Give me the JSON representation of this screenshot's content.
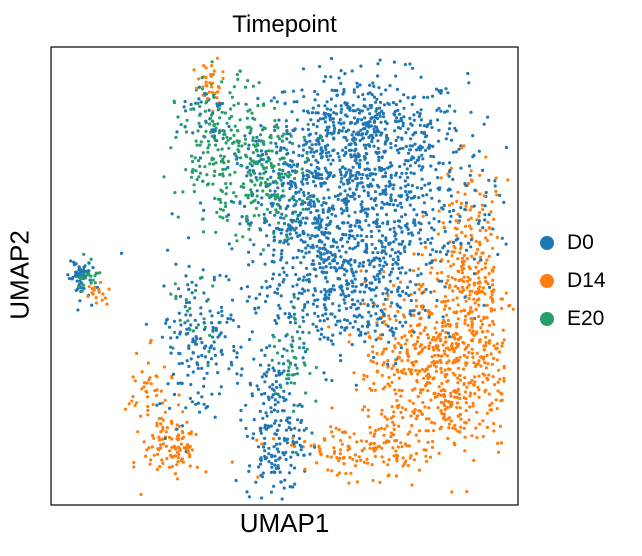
{
  "chart_data": {
    "type": "scatter",
    "title": "Timepoint",
    "xlabel": "UMAP1",
    "ylabel": "UMAP2",
    "xticks": false,
    "yticks": false,
    "grid": false,
    "legend_position": "right",
    "xlim": [
      0,
      100
    ],
    "ylim": [
      0,
      100
    ],
    "series": [
      {
        "name": "D0",
        "color": "#1f77b4",
        "clusters": [
          {
            "center": [
              67,
              80
            ],
            "spread": [
              11,
              7
            ],
            "count": 620
          },
          {
            "center": [
              56,
              62
            ],
            "spread": [
              8,
              10
            ],
            "count": 520
          },
          {
            "center": [
              74,
              60
            ],
            "spread": [
              10,
              9
            ],
            "count": 380
          },
          {
            "center": [
              63,
              44
            ],
            "spread": [
              8,
              7
            ],
            "count": 260
          },
          {
            "center": [
              32,
              36
            ],
            "spread": [
              5,
              9
            ],
            "count": 170
          },
          {
            "center": [
              48,
              16
            ],
            "spread": [
              3,
              8
            ],
            "count": 200
          },
          {
            "center": [
              6,
              50
            ],
            "spread": [
              1.2,
              2.5
            ],
            "count": 55
          },
          {
            "center": [
              33,
              85
            ],
            "spread": [
              3,
              4
            ],
            "count": 40
          }
        ]
      },
      {
        "name": "D14",
        "color": "#ff7f0e",
        "clusters": [
          {
            "center": [
              83,
              30
            ],
            "spread": [
              8,
              10
            ],
            "count": 620
          },
          {
            "center": [
              90,
              50
            ],
            "spread": [
              4,
              11
            ],
            "count": 260
          },
          {
            "center": [
              66,
              12
            ],
            "spread": [
              9,
              3
            ],
            "count": 140
          },
          {
            "center": [
              26,
              13
            ],
            "spread": [
              3,
              4
            ],
            "count": 110
          },
          {
            "center": [
              21,
              25
            ],
            "spread": [
              2.5,
              4
            ],
            "count": 40
          },
          {
            "center": [
              34,
              92
            ],
            "spread": [
              1.5,
              2.5
            ],
            "count": 35
          },
          {
            "center": [
              10,
              46
            ],
            "spread": [
              1.5,
              2
            ],
            "count": 18
          }
        ]
      },
      {
        "name": "E20",
        "color": "#279e68",
        "clusters": [
          {
            "center": [
              37,
              77
            ],
            "spread": [
              5,
              8
            ],
            "count": 230
          },
          {
            "center": [
              48,
              72
            ],
            "spread": [
              4,
              6
            ],
            "count": 140
          },
          {
            "center": [
              8,
              50
            ],
            "spread": [
              1.2,
              2
            ],
            "count": 25
          },
          {
            "center": [
              52,
              32
            ],
            "spread": [
              2.5,
              7
            ],
            "count": 45
          },
          {
            "center": [
              30,
              40
            ],
            "spread": [
              3,
              5
            ],
            "count": 25
          }
        ]
      }
    ]
  }
}
